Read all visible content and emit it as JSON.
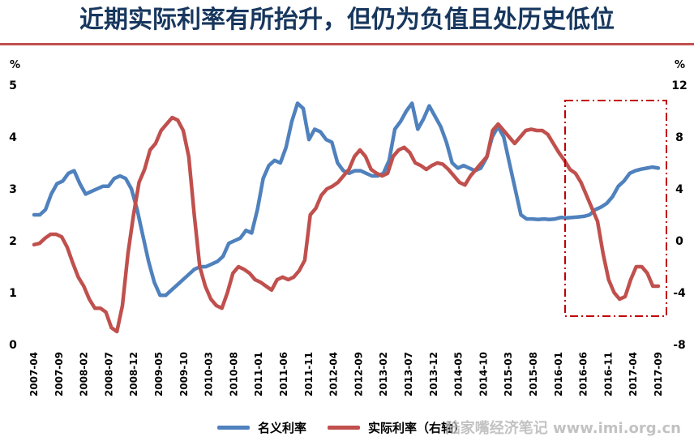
{
  "title": "近期实际利率有所抬升，但仍为负值且处历史低位",
  "watermark": "陆家嘴经济笔记 www.imi.org.cn",
  "chart_data": {
    "type": "line",
    "x_labels": [
      "2007-04",
      "2007-09",
      "2008-02",
      "2008-07",
      "2008-12",
      "2009-05",
      "2009-10",
      "2010-03",
      "2010-08",
      "2011-01",
      "2011-06",
      "2011-11",
      "2012-04",
      "2012-09",
      "2013-02",
      "2013-07",
      "2013-12",
      "2014-05",
      "2014-10",
      "2015-03",
      "2015-08",
      "2016-01",
      "2016-06",
      "2016-11",
      "2017-04",
      "2017-09"
    ],
    "left_axis": {
      "unit": "%",
      "ticks": [
        0,
        1,
        2,
        3,
        4,
        5
      ],
      "ylim": [
        0,
        5
      ]
    },
    "right_axis": {
      "unit": "%",
      "ticks": [
        -8,
        -4,
        0,
        4,
        8,
        12
      ],
      "ylim": [
        -8,
        12
      ]
    },
    "series": [
      {
        "name": "名义利率",
        "axis": "left",
        "color": "#4f81bd",
        "values": [
          2.5,
          2.5,
          2.6,
          2.9,
          3.1,
          3.15,
          3.3,
          3.35,
          3.1,
          2.9,
          2.95,
          3.0,
          3.05,
          3.05,
          3.2,
          3.25,
          3.2,
          3.0,
          2.6,
          2.1,
          1.6,
          1.2,
          0.95,
          0.95,
          1.05,
          1.15,
          1.25,
          1.35,
          1.45,
          1.5,
          1.5,
          1.55,
          1.6,
          1.7,
          1.95,
          2.0,
          2.05,
          2.2,
          2.15,
          2.6,
          3.2,
          3.45,
          3.55,
          3.5,
          3.8,
          4.3,
          4.65,
          4.55,
          3.95,
          4.15,
          4.1,
          3.95,
          3.9,
          3.5,
          3.35,
          3.3,
          3.35,
          3.35,
          3.3,
          3.25,
          3.25,
          3.3,
          3.55,
          4.15,
          4.3,
          4.5,
          4.65,
          4.15,
          4.35,
          4.6,
          4.4,
          4.2,
          3.9,
          3.5,
          3.4,
          3.45,
          3.4,
          3.35,
          3.4,
          3.6,
          4.0,
          4.2,
          4.0,
          3.5,
          3.0,
          2.5,
          2.42,
          2.42,
          2.41,
          2.42,
          2.41,
          2.42,
          2.45,
          2.44,
          2.45,
          2.46,
          2.47,
          2.5,
          2.6,
          2.65,
          2.72,
          2.85,
          3.05,
          3.15,
          3.3,
          3.35,
          3.38,
          3.4,
          3.42,
          3.4
        ]
      },
      {
        "name": "实际利率（右轴）",
        "axis": "right",
        "color": "#c0504d",
        "values": [
          -0.3,
          -0.2,
          0.2,
          0.5,
          0.5,
          0.3,
          -0.5,
          -1.7,
          -2.8,
          -3.5,
          -4.5,
          -5.2,
          -5.2,
          -5.5,
          -6.7,
          -7.0,
          -5.0,
          -1.0,
          2.0,
          4.5,
          5.5,
          7.0,
          7.5,
          8.5,
          9.0,
          9.5,
          9.3,
          8.5,
          6.5,
          2.0,
          -2.0,
          -3.5,
          -4.5,
          -5.0,
          -5.2,
          -4.0,
          -2.5,
          -2.0,
          -2.2,
          -2.5,
          -3.0,
          -3.2,
          -3.5,
          -3.8,
          -3.0,
          -2.8,
          -3.0,
          -2.8,
          -2.3,
          -1.5,
          2.0,
          2.5,
          3.5,
          4.0,
          4.2,
          4.5,
          5.0,
          5.5,
          6.5,
          7.0,
          6.5,
          5.5,
          5.2,
          5.0,
          5.2,
          6.5,
          7.0,
          7.2,
          6.8,
          6.0,
          5.8,
          5.5,
          5.8,
          6.0,
          5.9,
          5.5,
          5.0,
          4.5,
          4.3,
          5.0,
          5.5,
          6.0,
          6.5,
          8.5,
          9.0,
          8.5,
          8.0,
          7.5,
          8.0,
          8.5,
          8.6,
          8.5,
          8.5,
          8.2,
          7.5,
          6.8,
          6.2,
          5.5,
          5.2,
          4.5,
          3.5,
          2.5,
          1.5,
          -1.0,
          -3.0,
          -4.0,
          -4.5,
          -4.3,
          -3.0,
          -2.0,
          -2.0,
          -2.5,
          -3.5,
          -3.5
        ]
      }
    ],
    "annotation": {
      "type": "dash-dot-box",
      "color": "#c00000"
    },
    "legend_position": "bottom-center",
    "grid": false
  }
}
